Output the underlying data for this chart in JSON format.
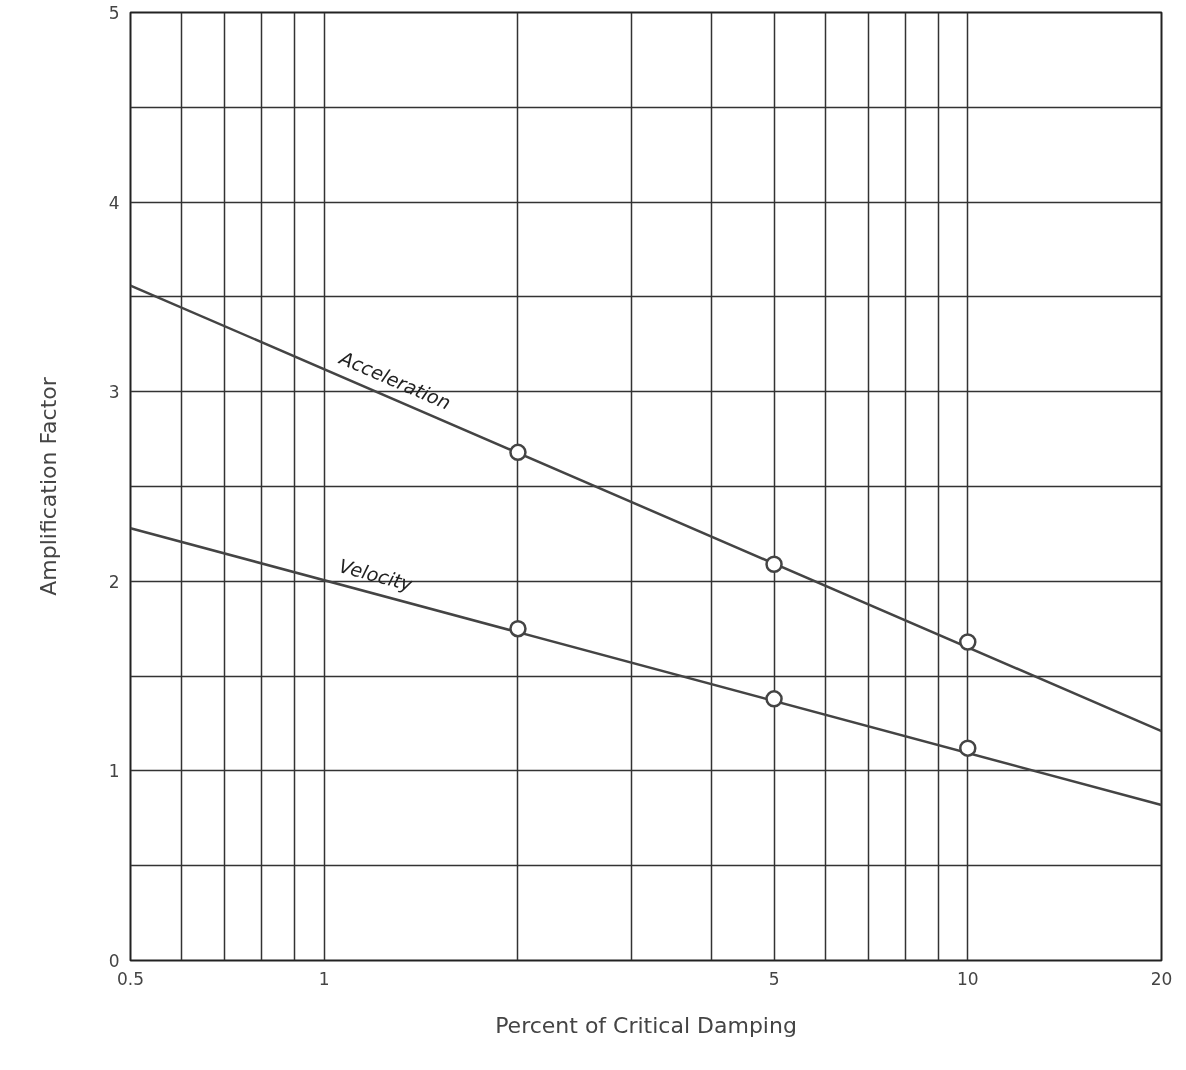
{
  "chart_data": {
    "type": "line",
    "xlabel": "Percent of Critical Damping",
    "ylabel": "Amplification Factor",
    "log": "x",
    "grid": true,
    "line_style": "solid",
    "xlim": [
      0.5,
      20
    ],
    "ylim": [
      0,
      5
    ],
    "xticks": [
      0.5,
      {
        "value": 0.6,
        "label": null
      },
      {
        "value": 0.7,
        "label": null
      },
      {
        "value": 0.8,
        "label": null
      },
      {
        "value": 0.9,
        "label": null
      },
      1,
      {
        "value": 2,
        "label": null
      },
      {
        "value": 3,
        "label": null
      },
      {
        "value": 4,
        "label": null
      },
      5,
      {
        "value": 6,
        "label": null
      },
      {
        "value": 7,
        "label": null
      },
      {
        "value": 8,
        "label": null
      },
      {
        "value": 9,
        "label": null
      },
      10,
      20
    ],
    "yticks": [
      0,
      {
        "value": 0.5,
        "label": null
      },
      1,
      {
        "value": 1.5,
        "label": null
      },
      2,
      {
        "value": 2.5,
        "label": null
      },
      3,
      {
        "value": 3.5,
        "label": null
      },
      4,
      {
        "value": 4.5,
        "label": null
      },
      5
    ],
    "series": [
      {
        "name": "Acceleration",
        "marker": "none",
        "color": "#444444",
        "x": [
          0.5,
          20
        ],
        "values": [
          3.56,
          1.21
        ]
      },
      {
        "type": "scatter",
        "marker": "circle",
        "color": "#444444",
        "x": [
          2,
          5,
          10
        ],
        "values": [
          2.68,
          2.09,
          1.68
        ]
      },
      {
        "name": "Velocity",
        "marker": "none",
        "color": "#444444",
        "x": [
          0.5,
          20
        ],
        "values": [
          2.28,
          0.82
        ]
      },
      {
        "type": "scatter",
        "marker": "circle",
        "color": "#444444",
        "x": [
          2,
          5,
          10
        ],
        "values": [
          1.75,
          1.38,
          1.12
        ]
      }
    ]
  }
}
